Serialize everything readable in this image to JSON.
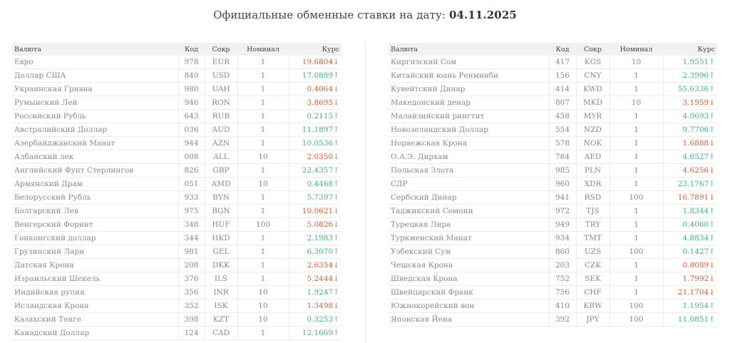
{
  "header": {
    "title": "Официальные обменные ставки на дату:",
    "date": "04.11.2025"
  },
  "columns": {
    "name": "Валюта",
    "code": "Код",
    "abbr": "Сокр",
    "nominal": "Номинал",
    "rate": "Курс"
  },
  "colors": {
    "up": "#3dba80",
    "down": "#f0582c"
  },
  "icons": {
    "up": "arrow-up-icon",
    "down": "arrow-down-icon"
  },
  "left_rows": [
    {
      "name": "Евро",
      "code": "978",
      "abbr": "EUR",
      "nominal": "1",
      "rate": "19.6804",
      "dir": "down"
    },
    {
      "name": "Доллар США",
      "code": "840",
      "abbr": "USD",
      "nominal": "1",
      "rate": "17.0889",
      "dir": "up"
    },
    {
      "name": "Украинская Гривна",
      "code": "980",
      "abbr": "UAH",
      "nominal": "1",
      "rate": "0.4064",
      "dir": "down"
    },
    {
      "name": "Румынский Лей",
      "code": "946",
      "abbr": "RON",
      "nominal": "1",
      "rate": "3.8695",
      "dir": "down"
    },
    {
      "name": "Российский Рубль",
      "code": "643",
      "abbr": "RUB",
      "nominal": "1",
      "rate": "0.2115",
      "dir": "up"
    },
    {
      "name": "Австралийский Доллар",
      "code": "036",
      "abbr": "AUD",
      "nominal": "1",
      "rate": "11.1897",
      "dir": "up"
    },
    {
      "name": "Азербайджанский Манат",
      "code": "944",
      "abbr": "AZN",
      "nominal": "1",
      "rate": "10.0536",
      "dir": "up"
    },
    {
      "name": "Албанский лек",
      "code": "008",
      "abbr": "ALL",
      "nominal": "10",
      "rate": "2.0350",
      "dir": "down"
    },
    {
      "name": "Английский Фунт Стерлингов",
      "code": "826",
      "abbr": "GBP",
      "nominal": "1",
      "rate": "22.4357",
      "dir": "up"
    },
    {
      "name": "Армянский Драм",
      "code": "051",
      "abbr": "AMD",
      "nominal": "10",
      "rate": "0.4468",
      "dir": "up"
    },
    {
      "name": "Белорусский Рубль",
      "code": "933",
      "abbr": "BYN",
      "nominal": "1",
      "rate": "5.7397",
      "dir": "up"
    },
    {
      "name": "Болгарский Лев",
      "code": "975",
      "abbr": "BGN",
      "nominal": "1",
      "rate": "10.0621",
      "dir": "down"
    },
    {
      "name": "Венгерский Форинт",
      "code": "348",
      "abbr": "HUF",
      "nominal": "100",
      "rate": "5.0826",
      "dir": "down"
    },
    {
      "name": "Гонконгский доллар",
      "code": "344",
      "abbr": "HKD",
      "nominal": "1",
      "rate": "2.1983",
      "dir": "up"
    },
    {
      "name": "Грузинский Лари",
      "code": "981",
      "abbr": "GEL",
      "nominal": "1",
      "rate": "6.3070",
      "dir": "up"
    },
    {
      "name": "Датская Крона",
      "code": "208",
      "abbr": "DKK",
      "nominal": "1",
      "rate": "2.6354",
      "dir": "down"
    },
    {
      "name": "Израильский Шекель",
      "code": "376",
      "abbr": "ILS",
      "nominal": "1",
      "rate": "5.2444",
      "dir": "down"
    },
    {
      "name": "Индийская рупия",
      "code": "356",
      "abbr": "INR",
      "nominal": "10",
      "rate": "1.9247",
      "dir": "up"
    },
    {
      "name": "Исландская Крона",
      "code": "352",
      "abbr": "ISK",
      "nominal": "10",
      "rate": "1.3498",
      "dir": "down"
    },
    {
      "name": "Казахский Тенге",
      "code": "398",
      "abbr": "KZT",
      "nominal": "10",
      "rate": "0.3253",
      "dir": "up"
    },
    {
      "name": "Канадский Доллар",
      "code": "124",
      "abbr": "CAD",
      "nominal": "1",
      "rate": "12.1669",
      "dir": "up"
    }
  ],
  "right_rows": [
    {
      "name": "Киргизский Сом",
      "code": "417",
      "abbr": "KGS",
      "nominal": "10",
      "rate": "1.9551",
      "dir": "up"
    },
    {
      "name": "Китайский юань Ренминби",
      "code": "156",
      "abbr": "CNY",
      "nominal": "1",
      "rate": "2.3996",
      "dir": "up"
    },
    {
      "name": "Кувейтский Динар",
      "code": "414",
      "abbr": "KWD",
      "nominal": "1",
      "rate": "55.6336",
      "dir": "up"
    },
    {
      "name": "Македонский денар",
      "code": "807",
      "abbr": "MKD",
      "nominal": "10",
      "rate": "3.1959",
      "dir": "down"
    },
    {
      "name": "Малайзийский рингтит",
      "code": "458",
      "abbr": "MYR",
      "nominal": "1",
      "rate": "4.0693",
      "dir": "up"
    },
    {
      "name": "Новозеландский Доллар",
      "code": "554",
      "abbr": "NZD",
      "nominal": "1",
      "rate": "9.7706",
      "dir": "up"
    },
    {
      "name": "Норвежская Крона",
      "code": "578",
      "abbr": "NOK",
      "nominal": "1",
      "rate": "1.6888",
      "dir": "down"
    },
    {
      "name": "О.А.Э. Дирхам",
      "code": "784",
      "abbr": "AED",
      "nominal": "1",
      "rate": "4.6527",
      "dir": "up"
    },
    {
      "name": "Польская Злота",
      "code": "985",
      "abbr": "PLN",
      "nominal": "1",
      "rate": "4.6256",
      "dir": "down"
    },
    {
      "name": "СДР",
      "code": "960",
      "abbr": "XDR",
      "nominal": "1",
      "rate": "23.1767",
      "dir": "up"
    },
    {
      "name": "Сербский Динар",
      "code": "941",
      "abbr": "RSD",
      "nominal": "100",
      "rate": "16.7891",
      "dir": "down"
    },
    {
      "name": "Таджикский Сомони",
      "code": "972",
      "abbr": "TJS",
      "nominal": "1",
      "rate": "1.8344",
      "dir": "up"
    },
    {
      "name": "Турецкая Лира",
      "code": "949",
      "abbr": "TRY",
      "nominal": "1",
      "rate": "0.4060",
      "dir": "up"
    },
    {
      "name": "Туркменский Манат",
      "code": "934",
      "abbr": "TMT",
      "nominal": "1",
      "rate": "4.8834",
      "dir": "up"
    },
    {
      "name": "Узбекский Сум",
      "code": "860",
      "abbr": "UZS",
      "nominal": "100",
      "rate": "0.1427",
      "dir": "up"
    },
    {
      "name": "Чешская Крона",
      "code": "203",
      "abbr": "CZK",
      "nominal": "1",
      "rate": "0.8089",
      "dir": "down"
    },
    {
      "name": "Шведская Крона",
      "code": "752",
      "abbr": "SEK",
      "nominal": "1",
      "rate": "1.7992",
      "dir": "down"
    },
    {
      "name": "Швейцарский Франк",
      "code": "756",
      "abbr": "CHF",
      "nominal": "1",
      "rate": "21.1704",
      "dir": "down"
    },
    {
      "name": "Южнокорейский вон",
      "code": "410",
      "abbr": "KRW",
      "nominal": "100",
      "rate": "1.1954",
      "dir": "up"
    },
    {
      "name": "Японская Йена",
      "code": "392",
      "abbr": "JPY",
      "nominal": "100",
      "rate": "11.0851",
      "dir": "up"
    }
  ]
}
